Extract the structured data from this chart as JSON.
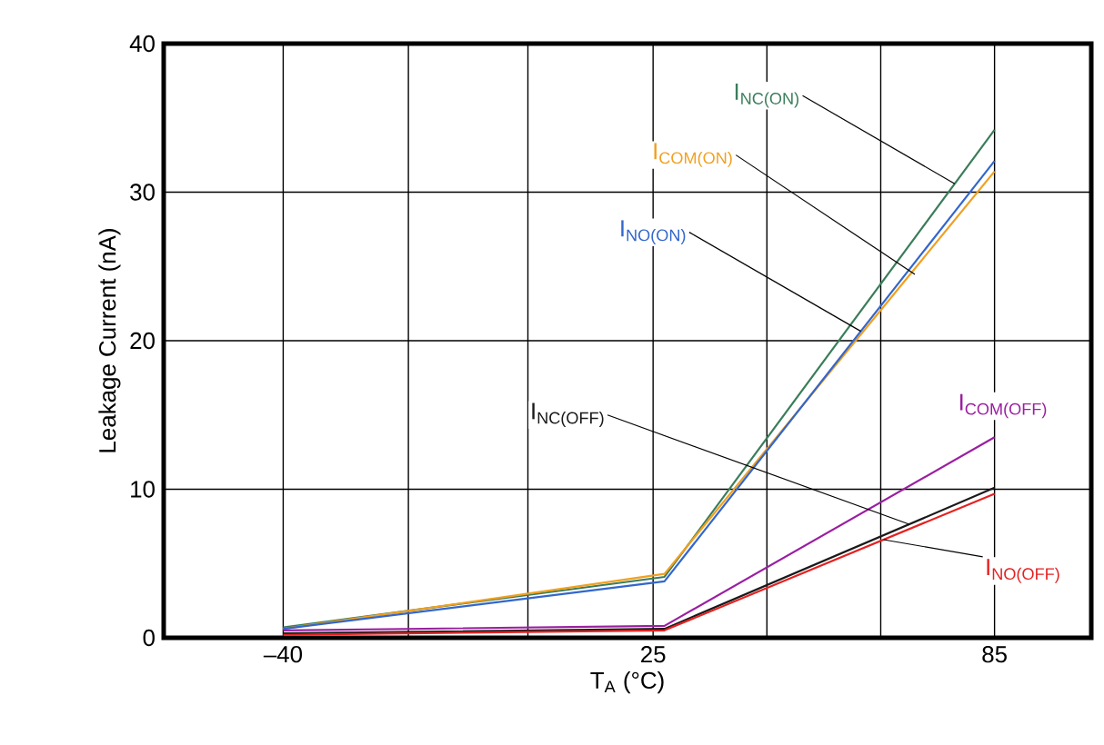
{
  "chart_data": {
    "type": "line",
    "xlabel": "T$_{A}$ (°C)",
    "ylabel": "Leakage Current (nA)",
    "x": [
      -40,
      27,
      85
    ],
    "xlim": [
      -61,
      102
    ],
    "ylim": [
      0,
      40
    ],
    "xticks": [
      {
        "value": -40,
        "label": "–40"
      },
      {
        "value": -18,
        "label": null
      },
      {
        "value": 3,
        "label": null
      },
      25,
      {
        "value": 45,
        "label": null
      },
      {
        "value": 65,
        "label": null
      },
      85
    ],
    "yticks": [
      0,
      10,
      20,
      30,
      40
    ],
    "grid": true,
    "legend": false,
    "marker": "none",
    "line_style": "solid",
    "series": [
      {
        "name": "I$_{NC(ON)}$",
        "color": "#3a7d5a",
        "values": [
          0.7,
          4.1,
          34.2
        ]
      },
      {
        "name": "I$_{COM(ON)}$",
        "color": "#f0a020",
        "values": [
          0.6,
          4.3,
          31.4
        ]
      },
      {
        "name": "I$_{NO(ON)}$",
        "color": "#3366cc",
        "values": [
          0.6,
          3.8,
          32.1
        ]
      },
      {
        "name": "I$_{COM(OFF)}$",
        "color": "#9b1fa0",
        "values": [
          0.5,
          0.8,
          13.5
        ]
      },
      {
        "name": "I$_{NC(OFF)}$",
        "color": "#1a1a1a",
        "values": [
          0.3,
          0.6,
          10.1
        ]
      },
      {
        "name": "I$_{NO(OFF)}$",
        "color": "#e52020",
        "values": [
          0.2,
          0.5,
          9.7
        ]
      }
    ]
  }
}
